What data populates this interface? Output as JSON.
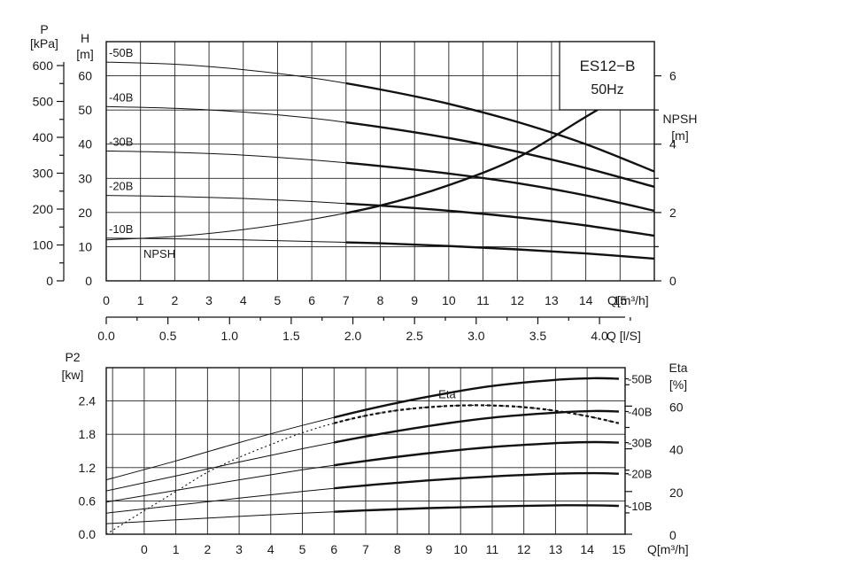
{
  "chart_data": [
    {
      "type": "line",
      "title": "ES12−B",
      "subtitle": "50Hz",
      "x_label": "Q[m³/h]",
      "x_values": [
        0,
        1,
        2,
        3,
        4,
        5,
        6,
        7,
        8,
        9,
        10,
        11,
        12,
        13,
        14,
        15
      ],
      "x_range": [
        0,
        16
      ],
      "secondary_x_label": "Q [l/S]",
      "secondary_x_ticks": [
        "0.0",
        "0.5",
        "1.0",
        "1.5",
        "2.0",
        "2.5",
        "3.0",
        "3.5",
        "4.0"
      ],
      "y_label": "H [m]",
      "y_ticks": [
        "0",
        "10",
        "20",
        "30",
        "40",
        "50",
        "60"
      ],
      "y_range": [
        0,
        70
      ],
      "y2_label": "P [kPa]",
      "y2_ticks": [
        "0",
        "100",
        "200",
        "300",
        "400",
        "500",
        "600"
      ],
      "y3_label": "NPSH [m]",
      "y3_ticks": [
        "0",
        "2",
        "4",
        "6"
      ],
      "y3_range": [
        0,
        7
      ],
      "grid": true,
      "series": [
        {
          "name": "-50B",
          "axis": "H",
          "x": [
            0,
            2,
            4,
            6,
            8,
            10,
            12,
            14,
            16
          ],
          "y": [
            64,
            63.4,
            61.8,
            59.4,
            56.0,
            51.8,
            46.5,
            40.0,
            32.0
          ]
        },
        {
          "name": "-40B",
          "axis": "H",
          "x": [
            0,
            2,
            4,
            6,
            8,
            10,
            12,
            14,
            16
          ],
          "y": [
            51,
            50.5,
            49.4,
            47.6,
            45.0,
            41.8,
            37.8,
            33.0,
            27.5
          ]
        },
        {
          "name": "-30B",
          "axis": "H",
          "x": [
            0,
            2,
            4,
            6,
            8,
            10,
            12,
            14,
            16
          ],
          "y": [
            38,
            37.6,
            36.8,
            35.4,
            33.6,
            31.4,
            28.6,
            25.0,
            20.5
          ]
        },
        {
          "name": "-20B",
          "axis": "H",
          "x": [
            0,
            2,
            4,
            6,
            8,
            10,
            12,
            14,
            16
          ],
          "y": [
            25,
            24.7,
            24.1,
            23.2,
            22.0,
            20.5,
            18.6,
            16.2,
            13.2
          ]
        },
        {
          "name": "-10B",
          "axis": "H",
          "x": [
            0,
            2,
            4,
            6,
            8,
            10,
            12,
            14,
            16
          ],
          "y": [
            12.5,
            12.3,
            12.0,
            11.5,
            11.0,
            10.2,
            9.2,
            8.0,
            6.5
          ]
        },
        {
          "name": "NPSH",
          "axis": "NPSH",
          "x": [
            0,
            2,
            4,
            6,
            8,
            10,
            12,
            14,
            16
          ],
          "y": [
            1.2,
            1.3,
            1.5,
            1.8,
            2.2,
            2.8,
            3.6,
            4.8,
            6.0
          ]
        }
      ]
    },
    {
      "type": "line",
      "x_label": "Q[m³/h]",
      "x_values": [
        0,
        1,
        2,
        3,
        4,
        5,
        6,
        7,
        8,
        9,
        10,
        11,
        12,
        13,
        14,
        15
      ],
      "x_range": [
        -1.2,
        15.2
      ],
      "y_label": "P2 [kw]",
      "y_ticks": [
        "0.0",
        "0.6",
        "1.2",
        "1.8",
        "2.4"
      ],
      "y_range": [
        0,
        3.0
      ],
      "y2_label": "Eta [%]",
      "y2_ticks": [
        "0",
        "20",
        "40",
        "60"
      ],
      "y2_range": [
        0,
        78
      ],
      "grid": true,
      "series": [
        {
          "name": "-50B",
          "axis": "P2",
          "x": [
            -1.2,
            1,
            3,
            5,
            7,
            9,
            11,
            13,
            14.2,
            15
          ],
          "y": [
            0.98,
            1.32,
            1.65,
            1.96,
            2.24,
            2.48,
            2.67,
            2.78,
            2.81,
            2.8
          ]
        },
        {
          "name": "-40B",
          "axis": "P2",
          "x": [
            -1.2,
            1,
            3,
            5,
            7,
            9,
            11,
            13,
            14.2,
            15
          ],
          "y": [
            0.78,
            1.05,
            1.3,
            1.54,
            1.76,
            1.95,
            2.1,
            2.19,
            2.22,
            2.21
          ]
        },
        {
          "name": "-30B",
          "axis": "P2",
          "x": [
            -1.2,
            1,
            3,
            5,
            7,
            9,
            11,
            13,
            14.2,
            15
          ],
          "y": [
            0.58,
            0.79,
            0.98,
            1.16,
            1.32,
            1.46,
            1.57,
            1.64,
            1.66,
            1.65
          ]
        },
        {
          "name": "-20B",
          "axis": "P2",
          "x": [
            -1.2,
            1,
            3,
            5,
            7,
            9,
            11,
            13,
            14.2,
            15
          ],
          "y": [
            0.38,
            0.52,
            0.65,
            0.77,
            0.88,
            0.97,
            1.04,
            1.09,
            1.1,
            1.09
          ]
        },
        {
          "name": "-10B",
          "axis": "P2",
          "x": [
            -1.2,
            1,
            3,
            5,
            7,
            9,
            11,
            13,
            14.2,
            15
          ],
          "y": [
            0.19,
            0.26,
            0.32,
            0.38,
            0.43,
            0.47,
            0.5,
            0.52,
            0.52,
            0.51
          ]
        },
        {
          "name": "Eta",
          "axis": "Eta",
          "x": [
            -1.2,
            0,
            1,
            2,
            3,
            4,
            5,
            6,
            7,
            8,
            9,
            10,
            11,
            12,
            13,
            14,
            15
          ],
          "y": [
            0,
            11,
            20,
            29,
            36,
            42,
            47.5,
            52,
            55.5,
            58,
            59.5,
            60.3,
            60.3,
            59.5,
            57.8,
            55.3,
            52
          ]
        }
      ]
    }
  ]
}
